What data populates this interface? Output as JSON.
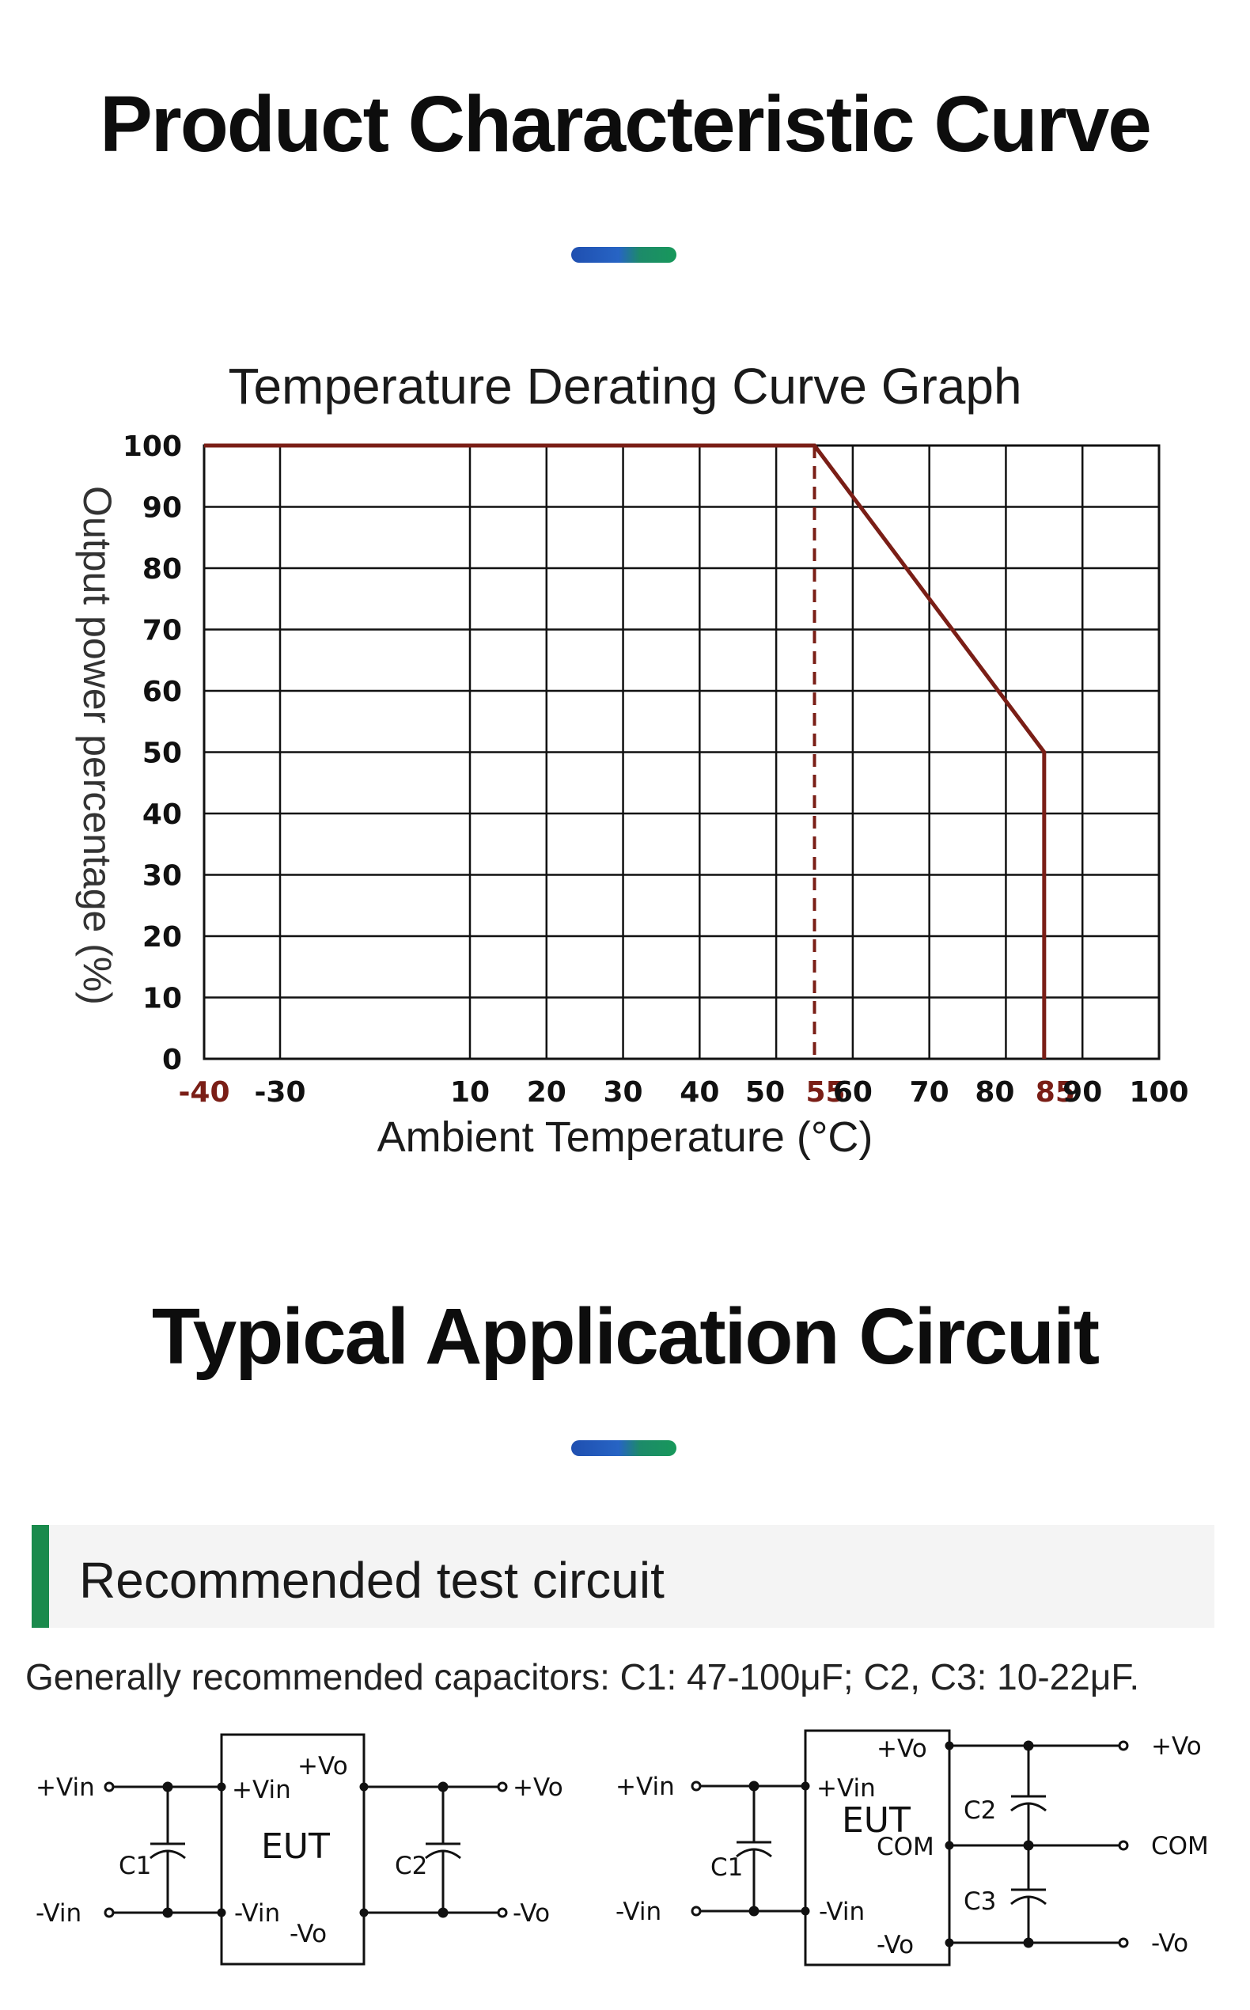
{
  "page": {
    "title_1": "Product Characteristic Curve",
    "title_2": "Typical Application Circuit",
    "accent_gradient": [
      "#1f4fb0",
      "#17985a"
    ]
  },
  "chart_data": {
    "type": "line",
    "title": "Temperature Derating Curve Graph",
    "xlabel": "Ambient Temperature (°C)",
    "ylabel": "Output power percentage (%)",
    "x_ticks": [
      -40,
      -30,
      10,
      20,
      30,
      40,
      50,
      55,
      60,
      70,
      80,
      85,
      90,
      100
    ],
    "x_highlight_ticks": [
      -40,
      55,
      85
    ],
    "x_gridlines": [
      -30,
      10,
      20,
      30,
      40,
      50,
      60,
      70,
      80,
      90,
      100
    ],
    "y_ticks": [
      0,
      10,
      20,
      30,
      40,
      50,
      60,
      70,
      80,
      90,
      100
    ],
    "xlim": [
      -40,
      100
    ],
    "ylim": [
      0,
      100
    ],
    "grid": true,
    "series": [
      {
        "x": [
          -40,
          55,
          85,
          85
        ],
        "y": [
          100,
          100,
          50,
          0
        ],
        "color": "#7a1e16"
      }
    ],
    "reference_line": {
      "x": 55,
      "style": "dashed",
      "color": "#7a1e16"
    },
    "colors": {
      "line": "#7a1e16",
      "grid": "#111111",
      "highlight_tick": "#7a1e16"
    }
  },
  "circuit": {
    "subheading": "Recommended test circuit",
    "note": "Generally recommended capacitors: C1: 47-100μF; C2, C3: 10-22μF.",
    "left": {
      "in_pos": "+Vin",
      "in_neg": "-Vin",
      "eut_in_pos": "+Vin",
      "eut_in_neg": "-Vin",
      "eut_out_pos": "+Vo",
      "eut_out_neg": "-Vo",
      "eut": "EUT",
      "c_in": "C1",
      "c_out": "C2",
      "out_pos": "+Vo",
      "out_neg": "-Vo"
    },
    "right": {
      "in_pos": "+Vin",
      "in_neg": "-Vin",
      "eut_in_pos": "+Vin",
      "eut_in_neg": "-Vin",
      "eut_out_pos": "+Vo",
      "eut_com": "COM",
      "eut_out_neg": "-Vo",
      "eut": "EUT",
      "c_in": "C1",
      "c_out_top": "C2",
      "c_out_bottom": "C3",
      "out_pos": "+Vo",
      "out_com": "COM",
      "out_neg": "-Vo"
    }
  }
}
